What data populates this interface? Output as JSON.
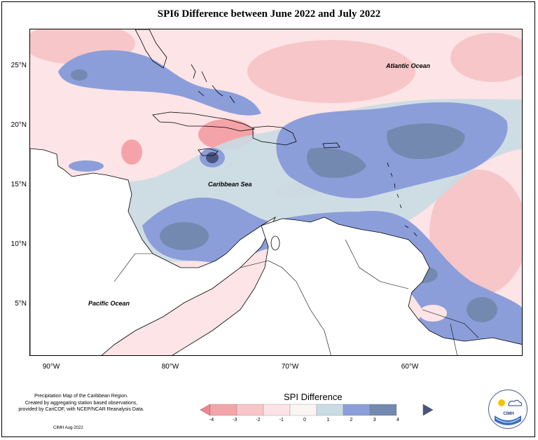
{
  "title": "SPI6 Difference between June 2022 and July 2022",
  "axes": {
    "y_labels": [
      "25°N",
      "20°N",
      "15°N",
      "10°N",
      "5°N"
    ],
    "x_labels": [
      "90°W",
      "80°W",
      "70°W",
      "60°W"
    ]
  },
  "map_labels": {
    "atlantic": "Atlantic Ocean",
    "caribbean": "Caribbean Sea",
    "pacific": "Pacific Ocean"
  },
  "info_text": [
    "Precipitation Map of the Caribbean Region.",
    "Created by aggregating station based observations,",
    "provided by CariCOF, with NCEP/NCAR Reanalysis Data."
  ],
  "credit": "CIMH Aug-2022",
  "legend": {
    "title": "SPI Difference",
    "ticks": [
      "-4",
      "-3",
      "-2",
      "-1",
      "0",
      "1",
      "2",
      "3",
      "4"
    ],
    "colors": [
      "#f4878c",
      "#f2a6aa",
      "#f7c6c8",
      "#fde3e5",
      "#fbf4f4",
      "#c9dbe3",
      "#8c9ed9",
      "#7489b0",
      "#4a5480"
    ]
  },
  "logo": {
    "text": "CIMH",
    "icon": "cimh-logo-icon"
  }
}
